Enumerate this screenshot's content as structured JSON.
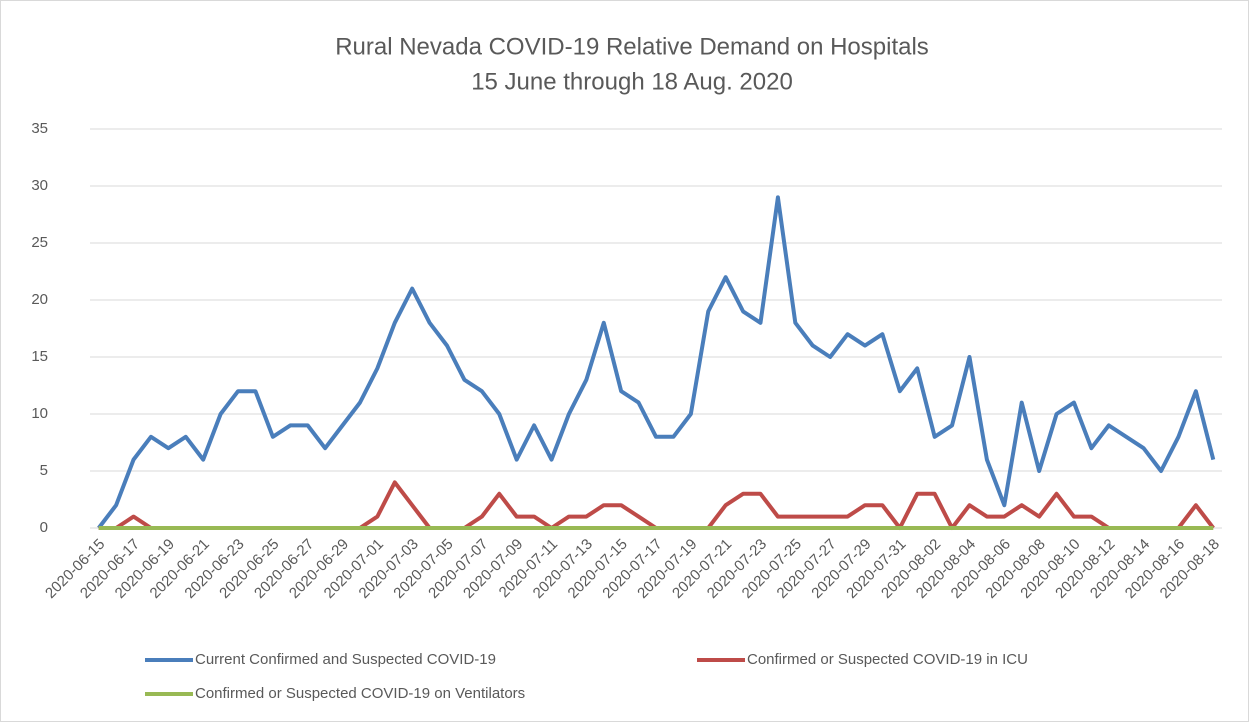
{
  "chart_data": {
    "type": "line",
    "title": "Rural Nevada COVID-19 Relative Demand on Hospitals",
    "subtitle": "15 June through 18 Aug. 2020",
    "categories": [
      "2020-06-15",
      null,
      "2020-06-17",
      null,
      "2020-06-19",
      null,
      "2020-06-21",
      null,
      "2020-06-23",
      null,
      "2020-06-25",
      null,
      "2020-06-27",
      null,
      "2020-06-29",
      null,
      "2020-07-01",
      null,
      "2020-07-03",
      null,
      "2020-07-05",
      null,
      "2020-07-07",
      null,
      "2020-07-09",
      null,
      "2020-07-11",
      null,
      "2020-07-13",
      null,
      "2020-07-15",
      null,
      "2020-07-17",
      null,
      "2020-07-19",
      null,
      "2020-07-21",
      null,
      "2020-07-23",
      null,
      "2020-07-25",
      null,
      "2020-07-27",
      null,
      "2020-07-29",
      null,
      "2020-07-31",
      null,
      "2020-08-02",
      null,
      "2020-08-04",
      null,
      "2020-08-06",
      null,
      "2020-08-08",
      null,
      "2020-08-10",
      null,
      "2020-08-12",
      null,
      "2020-08-14",
      null,
      "2020-08-16",
      null,
      "2020-08-18"
    ],
    "series": [
      {
        "name": "Current Confirmed and Suspected COVID-19",
        "color": "#4a7ebb",
        "values": [
          0,
          2,
          6,
          8,
          7,
          8,
          6,
          10,
          12,
          12,
          8,
          9,
          9,
          7,
          9,
          11,
          14,
          18,
          21,
          18,
          16,
          13,
          12,
          10,
          6,
          9,
          6,
          10,
          13,
          18,
          12,
          11,
          8,
          8,
          10,
          19,
          22,
          19,
          18,
          29,
          18,
          16,
          15,
          17,
          16,
          17,
          12,
          14,
          8,
          9,
          15,
          6,
          2,
          11,
          5,
          10,
          11,
          7,
          9,
          8,
          7,
          5,
          8,
          12,
          6
        ]
      },
      {
        "name": "Confirmed or Suspected COVID-19 in ICU",
        "color": "#be4b48",
        "values": [
          0,
          0,
          1,
          0,
          0,
          0,
          0,
          0,
          0,
          0,
          0,
          0,
          0,
          0,
          0,
          0,
          1,
          4,
          2,
          0,
          0,
          0,
          1,
          3,
          1,
          1,
          0,
          1,
          1,
          2,
          2,
          1,
          0,
          0,
          0,
          0,
          2,
          3,
          3,
          1,
          1,
          1,
          1,
          1,
          2,
          2,
          0,
          3,
          3,
          0,
          2,
          1,
          1,
          2,
          1,
          3,
          1,
          1,
          0,
          0,
          0,
          0,
          0,
          2,
          0
        ]
      },
      {
        "name": "Confirmed or Suspected COVID-19 on Ventilators",
        "color": "#98b954",
        "values": [
          0,
          0,
          0,
          0,
          0,
          0,
          0,
          0,
          0,
          0,
          0,
          0,
          0,
          0,
          0,
          0,
          0,
          0,
          0,
          0,
          0,
          0,
          0,
          0,
          0,
          0,
          0,
          0,
          0,
          0,
          0,
          0,
          0,
          0,
          0,
          0,
          0,
          0,
          0,
          0,
          0,
          0,
          0,
          0,
          0,
          0,
          0,
          0,
          0,
          0,
          0,
          0,
          0,
          0,
          0,
          0,
          0,
          0,
          0,
          0,
          0,
          0,
          0,
          0,
          0
        ]
      }
    ],
    "ylim": [
      0,
      35
    ],
    "yticks": [
      0,
      5,
      10,
      15,
      20,
      25,
      30,
      35
    ],
    "grid": true
  }
}
